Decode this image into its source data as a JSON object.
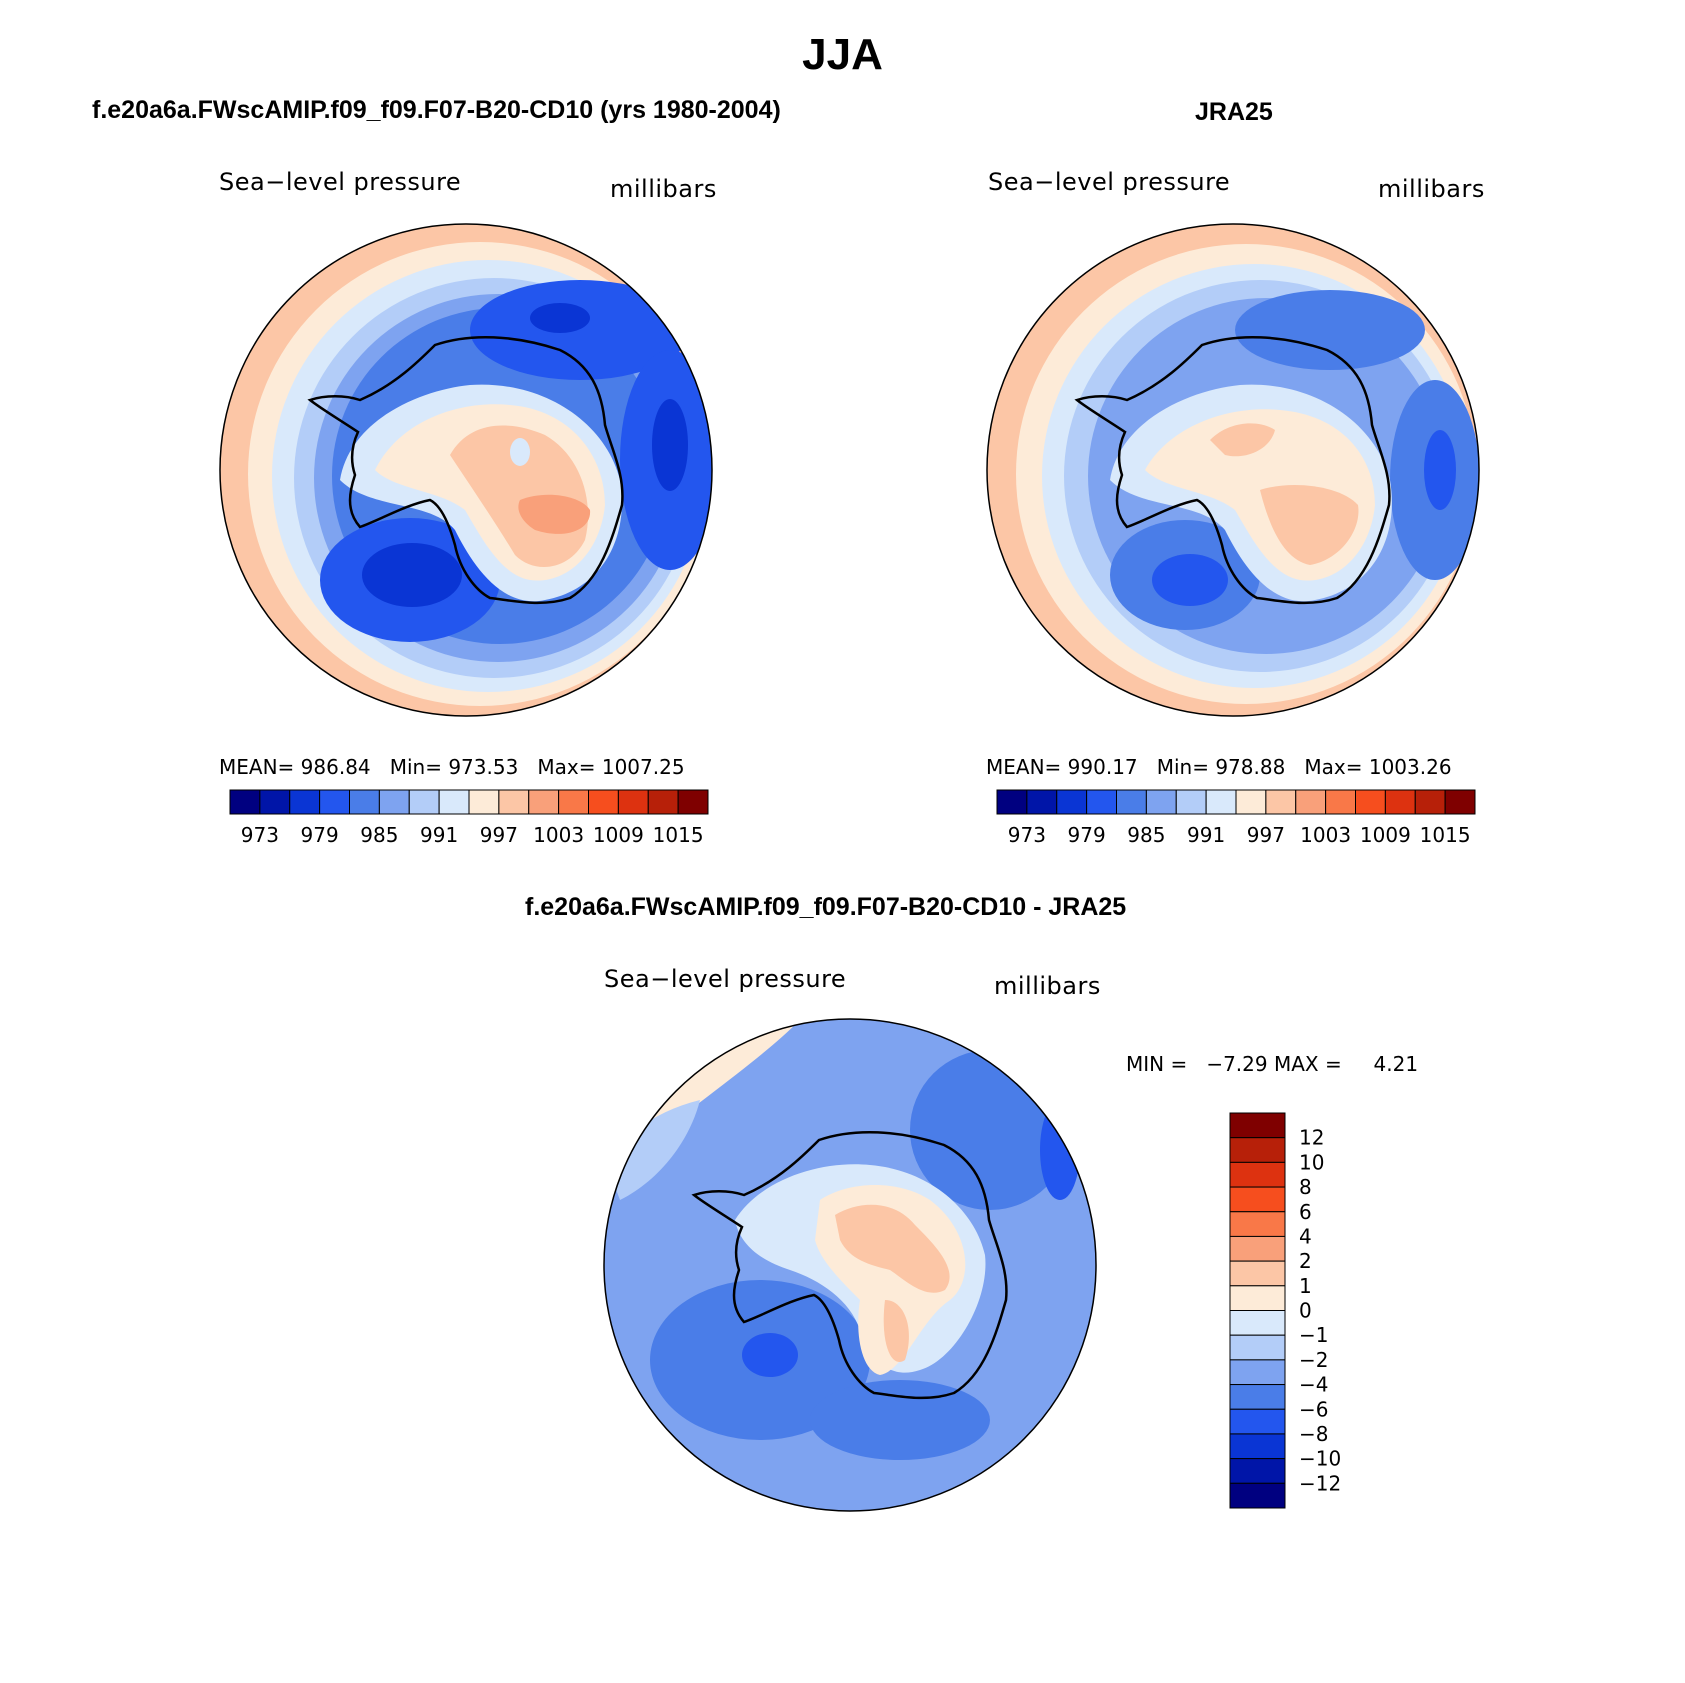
{
  "figure_title": "JJA",
  "unit_label": "millibars",
  "panels": {
    "model": {
      "title": "f.e20a6a.FWscAMIP.f09_f09.F07-B20-CD10 (yrs 1980-2004)",
      "left_label": "Sea−level pressure",
      "right_label": "millibars",
      "stats": {
        "mean_label": "MEAN=",
        "mean": "986.84",
        "min_label": "Min=",
        "min": "973.53",
        "max_label": "Max=",
        "max": "1007.25"
      }
    },
    "obs": {
      "title": "JRA25",
      "left_label": "Sea−level pressure",
      "right_label": "millibars",
      "stats": {
        "mean_label": "MEAN=",
        "mean": "990.17",
        "min_label": "Min=",
        "min": "978.88",
        "max_label": "Max=",
        "max": "1003.26"
      }
    },
    "diff": {
      "title": "f.e20a6a.FWscAMIP.f09_f09.F07-B20-CD10 - JRA25",
      "left_label": "Sea−level pressure",
      "right_label": "millibars",
      "min_label": "MIN =",
      "min": "−7.29",
      "max_label": "MAX =",
      "max": "4.21"
    }
  },
  "colorbar_abs": {
    "colors": [
      "#000080",
      "#0015a8",
      "#0a35d4",
      "#2356ee",
      "#4a7de8",
      "#7ea3f0",
      "#b3cdf8",
      "#d9e9fb",
      "#fdebd8",
      "#fcc6a6",
      "#f9a07a",
      "#f97848",
      "#f64e1e",
      "#dd3210",
      "#b72009",
      "#7f0000"
    ],
    "labels": [
      "973",
      "979",
      "985",
      "991",
      "997",
      "1003",
      "1009",
      "1015"
    ]
  },
  "colorbar_diff": {
    "colors": [
      "#7f0000",
      "#b72009",
      "#dd3210",
      "#f64e1e",
      "#f97848",
      "#f9a07a",
      "#fcc6a6",
      "#fdebd8",
      "#d9e9fb",
      "#b3cdf8",
      "#7ea3f0",
      "#4a7de8",
      "#2356ee",
      "#0a35d4",
      "#0015a8",
      "#000080"
    ],
    "labels": [
      "12",
      "10",
      "8",
      "6",
      "4",
      "2",
      "1",
      "0",
      "−1",
      "−2",
      "−4",
      "−6",
      "−8",
      "−10",
      "−12"
    ]
  }
}
